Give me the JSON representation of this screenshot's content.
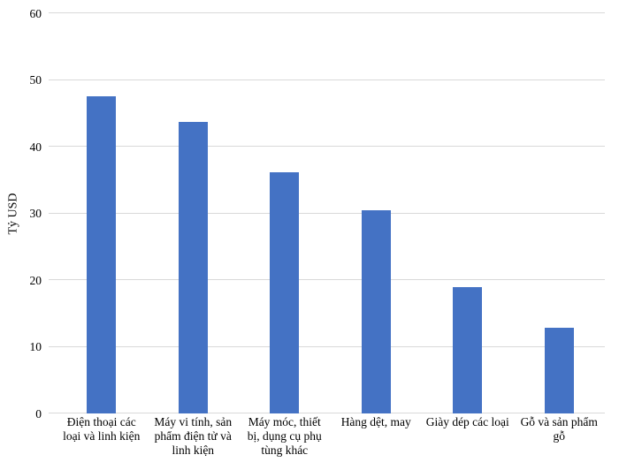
{
  "chart_data": {
    "type": "bar",
    "title": "",
    "xlabel": "",
    "ylabel": "Tỷ USD",
    "categories": [
      "Điện thoại các loại và linh kiện",
      "Máy vi tính, sản phẩm điện tử và linh kiện",
      "Máy móc, thiết bị, dụng cụ phụ tùng khác",
      "Hàng dệt, may",
      "Giày dép các loại",
      "Gỗ và sản phẩm gỗ"
    ],
    "category_lines": [
      [
        "Điện thoại các",
        "loại và linh kiện"
      ],
      [
        "Máy vi tính, sản",
        "phẩm điện tử và",
        "linh kiện"
      ],
      [
        "Máy móc, thiết",
        "bị, dụng cụ phụ",
        "tùng khác"
      ],
      [
        "Hàng dệt, may"
      ],
      [
        "Giày dép các loại"
      ],
      [
        "Gỗ và sản phẩm",
        "gỗ"
      ]
    ],
    "values": [
      47.6,
      43.7,
      36.1,
      30.4,
      19.0,
      12.8
    ],
    "ylim": [
      0,
      60
    ],
    "ytick_step": 10,
    "ytick_labels": [
      "0",
      "10",
      "20",
      "30",
      "40",
      "50",
      "60"
    ],
    "grid": "horizontal",
    "legend": "none",
    "bar_color": "#4472C4",
    "gridline_color": "#D9D9D9",
    "text_color": "#000000"
  }
}
